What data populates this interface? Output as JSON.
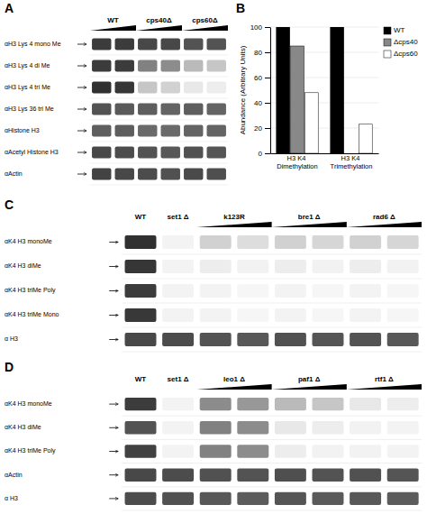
{
  "chart_data": [
    {
      "type": "western_blot",
      "title": "A",
      "rows": [
        "αH3 Lys 4 mono Me",
        "αH3 Lys 4 di Me",
        "αH3 Lys 4 tri Me",
        "αH3 Lys 36 tri Me",
        "αHistone H3",
        "αAcetyl Histone H3",
        "αActin"
      ],
      "column_groups": [
        {
          "label": "WT",
          "lanes": 2
        },
        {
          "label": "cps40Δ",
          "lanes": 2
        },
        {
          "label": "cps60Δ",
          "lanes": 2
        }
      ],
      "cells": [
        [
          0.85,
          0.85,
          0.8,
          0.8,
          0.75,
          0.75
        ],
        [
          0.85,
          0.85,
          0.55,
          0.5,
          0.3,
          0.25
        ],
        [
          0.9,
          0.88,
          0.25,
          0.2,
          0.1,
          0.08
        ],
        [
          0.75,
          0.72,
          0.7,
          0.68,
          0.7,
          0.68
        ],
        [
          0.7,
          0.7,
          0.65,
          0.65,
          0.68,
          0.68
        ],
        [
          0.8,
          0.78,
          0.75,
          0.73,
          0.76,
          0.74
        ],
        [
          0.82,
          0.8,
          0.78,
          0.76,
          0.79,
          0.77
        ]
      ]
    },
    {
      "type": "bar",
      "title": "B",
      "categories": [
        "H3 K4 Dimethylation",
        "H3 K4 Trimethylation"
      ],
      "series": [
        {
          "name": "WT",
          "color": "#000000",
          "values": [
            100,
            100
          ]
        },
        {
          "name": "Δcps40",
          "color": "#888888",
          "values": [
            85,
            0
          ]
        },
        {
          "name": "Δcps60",
          "color": "#ffffff",
          "values": [
            48,
            23
          ]
        }
      ],
      "y_label": "Abundance (Arbitrary Units)",
      "ylim": [
        0,
        100
      ],
      "yticks": [
        0,
        20,
        40,
        60,
        80,
        100
      ],
      "grid": true,
      "legend": "upper right"
    },
    {
      "type": "western_blot",
      "title": "C",
      "rows": [
        "αK4 H3 monoMe",
        "αK4 H3 diMe",
        "αK4 H3 triMe Poly",
        "αK4 H3 triMe Mono",
        "α H3"
      ],
      "column_groups": [
        {
          "label": "WT",
          "lanes": 1
        },
        {
          "label": "set1 Δ",
          "lanes": 1
        },
        {
          "label": "k123R",
          "lanes": 2
        },
        {
          "label": "bre1 Δ",
          "lanes": 2
        },
        {
          "label": "rad6 Δ",
          "lanes": 2
        }
      ],
      "cells": [
        [
          0.9,
          0.05,
          0.2,
          0.15,
          0.2,
          0.18,
          0.2,
          0.18
        ],
        [
          0.88,
          0.05,
          0.08,
          0.06,
          0.08,
          0.06,
          0.08,
          0.06
        ],
        [
          0.85,
          0.05,
          0.05,
          0.04,
          0.05,
          0.04,
          0.05,
          0.04
        ],
        [
          0.87,
          0.05,
          0.05,
          0.04,
          0.05,
          0.04,
          0.05,
          0.04
        ],
        [
          0.8,
          0.78,
          0.75,
          0.73,
          0.76,
          0.74,
          0.75,
          0.73
        ]
      ]
    },
    {
      "type": "western_blot",
      "title": "D",
      "rows": [
        "αK4 H3 monoMe",
        "αK4 H3 diMe",
        "αK4 H3 triMe Poly",
        "αActin",
        "α H3"
      ],
      "column_groups": [
        {
          "label": "WT",
          "lanes": 1
        },
        {
          "label": "set1 Δ",
          "lanes": 1
        },
        {
          "label": "leo1 Δ",
          "lanes": 2
        },
        {
          "label": "paf1 Δ",
          "lanes": 2
        },
        {
          "label": "rtf1 Δ",
          "lanes": 2
        }
      ],
      "cells": [
        [
          0.85,
          0.05,
          0.5,
          0.45,
          0.3,
          0.25,
          0.1,
          0.08
        ],
        [
          0.75,
          0.05,
          0.55,
          0.5,
          0.1,
          0.08,
          0.06,
          0.05
        ],
        [
          0.83,
          0.05,
          0.55,
          0.5,
          0.08,
          0.06,
          0.06,
          0.05
        ],
        [
          0.8,
          0.78,
          0.76,
          0.75,
          0.77,
          0.75,
          0.76,
          0.74
        ],
        [
          0.78,
          0.76,
          0.73,
          0.71,
          0.74,
          0.72,
          0.73,
          0.71
        ]
      ]
    }
  ]
}
